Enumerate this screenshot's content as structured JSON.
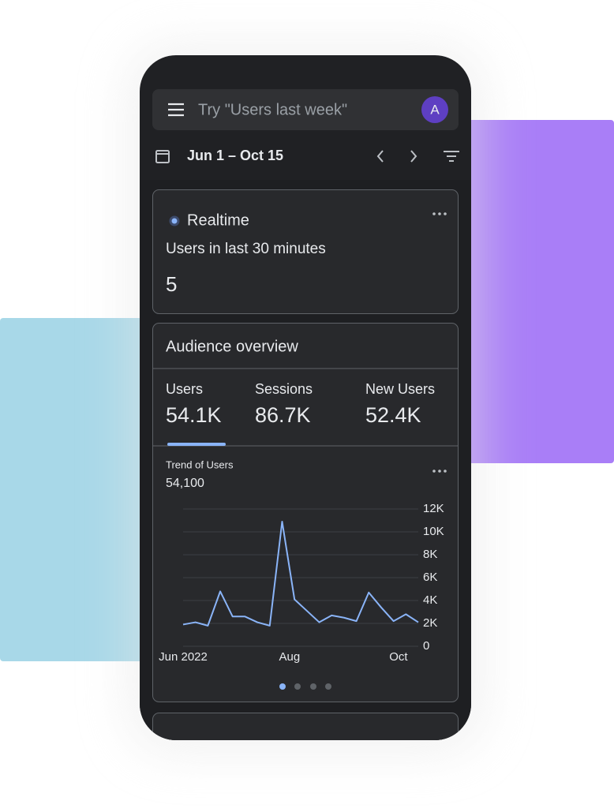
{
  "search": {
    "placeholder": "Try \"Users last week\"",
    "avatar": "A"
  },
  "date_range": "Jun 1 – Oct 15",
  "realtime": {
    "label": "Realtime",
    "subtitle": "Users in last 30 minutes",
    "value": "5"
  },
  "audience": {
    "title": "Audience overview",
    "metrics": [
      {
        "label": "Users",
        "value": "54.1K"
      },
      {
        "label": "Sessions",
        "value": "86.7K"
      },
      {
        "label": "New Users",
        "value": "52.4K"
      }
    ]
  },
  "chart_data": {
    "type": "line",
    "title": "Trend of Users",
    "subtitle": "54,100",
    "x": [
      0,
      1,
      2,
      3,
      4,
      5,
      6,
      7,
      8,
      9,
      10,
      11,
      12,
      13,
      14,
      15,
      16,
      17,
      18,
      19
    ],
    "values": [
      1900,
      2100,
      1800,
      4800,
      2600,
      2600,
      2100,
      1800,
      10900,
      4100,
      3100,
      2100,
      2700,
      2500,
      2200,
      4700,
      3400,
      2200,
      2800,
      2100
    ],
    "color": "#8ab4f8",
    "xlim": [
      0,
      19
    ],
    "xticks": [
      {
        "value": 0,
        "label": "Jun 2022"
      },
      {
        "value": 8.6,
        "label": "Aug"
      },
      {
        "value": 17.4,
        "label": "Oct"
      }
    ],
    "ylim": [
      0,
      12000
    ],
    "yticks": [
      0,
      {
        "value": 2000,
        "label": "2K"
      },
      {
        "value": 4000,
        "label": "4K"
      },
      {
        "value": 6000,
        "label": "6K"
      },
      {
        "value": 8000,
        "label": "8K"
      },
      {
        "value": 10000,
        "label": "10K"
      },
      {
        "value": 12000,
        "label": "12K"
      }
    ],
    "grid": true
  }
}
